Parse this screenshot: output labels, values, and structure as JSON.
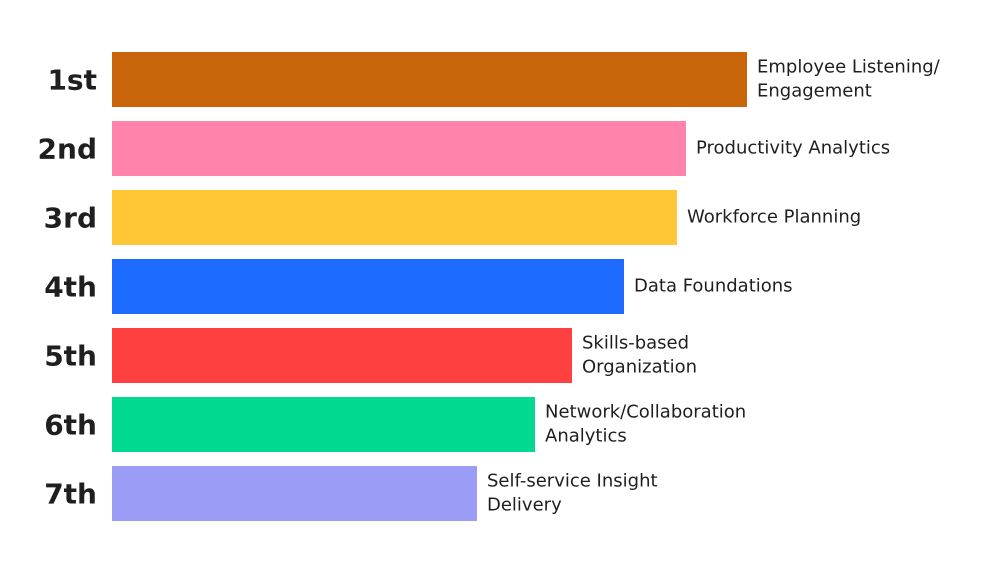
{
  "chart_data": {
    "type": "bar",
    "orientation": "horizontal",
    "categories": [
      "1st",
      "2nd",
      "3rd",
      "4th",
      "5th",
      "6th",
      "7th"
    ],
    "labels": [
      [
        "Employee Listening/",
        "Engagement"
      ],
      [
        "Productivity Analytics"
      ],
      [
        "Workforce Planning"
      ],
      [
        "Data Foundations"
      ],
      [
        "Skills-based",
        "Organization"
      ],
      [
        "Network/Collaboration",
        "Analytics"
      ],
      [
        "Self-service Insight",
        "Delivery"
      ]
    ],
    "values": [
      635,
      574,
      565,
      512,
      460,
      423,
      365
    ],
    "colors": [
      "#c8650b",
      "#ff83ab",
      "#ffc636",
      "#1e6bff",
      "#ff4040",
      "#00d98f",
      "#9a9cf5"
    ],
    "xlim": [
      0,
      700
    ]
  }
}
